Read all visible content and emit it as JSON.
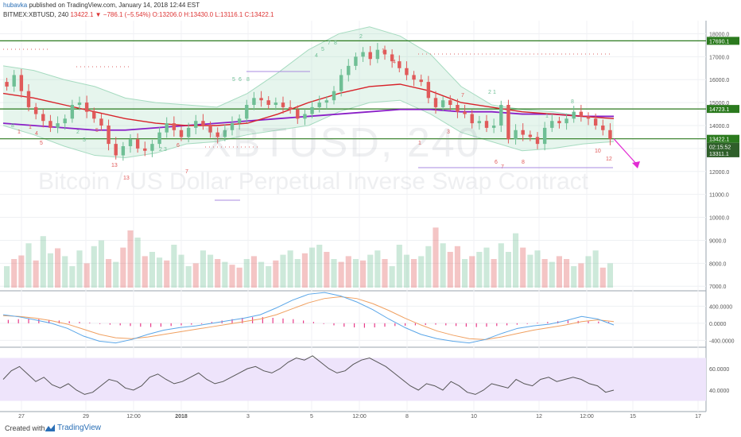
{
  "header": {
    "user": "hubavka",
    "published": "published on TradingView.com, January 14, 2018 12:44 EST",
    "symbol": "BITMEX:XBTUSD, 240",
    "change": "13422.1 ▼ −786.1 (−5.54%)",
    "ohlc": "O:13206.0 H:13430.0 L:13116.1 C:13422.1"
  },
  "watermark": {
    "symbol": "XBTUSD, 240",
    "description": "Bitcoin / US Dollar Perpetual Inverse Swap Contract"
  },
  "footer": {
    "created": "Created with",
    "brand": "TradingView"
  },
  "colors": {
    "up": "#6fbf95",
    "down": "#e05a5a",
    "ema": "#d8222a",
    "ma": "#8a1fc7",
    "band": "#a6dbc0",
    "level": "#2b7a1e",
    "rsi_band": "#eee4fb",
    "arrow": "#e22bd3",
    "macd": "#5aa6e8",
    "signal": "#f0a060"
  },
  "chart_data": [
    {
      "type": "candlestick",
      "title": "BITMEX:XBTUSD, 240",
      "y_ticks": [
        7000,
        8000,
        9000,
        10000,
        11000,
        12000,
        13000,
        14000,
        15000,
        16000,
        17000,
        18000
      ],
      "y_tick_labels": [
        "7000.0",
        "8000.0",
        "9000.0",
        "10000.0",
        "11000.0",
        "12000.0",
        "13000.0",
        "14000.0",
        "15000.0",
        "16000.0",
        "17000.0",
        "18000.0"
      ],
      "ylim": [
        6800,
        18500
      ],
      "x_tick_labels": [
        "27",
        "29",
        "12:00",
        "2018",
        "3",
        "5",
        "12:00",
        "8",
        "10",
        "12",
        "12:00",
        "15",
        "17"
      ],
      "horizontal_levels": [
        17690.1,
        14723.1,
        13422.1
      ],
      "price_labels": [
        "17690.1",
        "14723.1",
        "13422.1",
        "02:15:52",
        "13311.1"
      ],
      "close_path": [
        15700,
        16200,
        15500,
        14800,
        14500,
        14200,
        13900,
        14100,
        14300,
        14900,
        15000,
        14600,
        14300,
        14000,
        13200,
        12700,
        13100,
        13400,
        13000,
        12900,
        13200,
        13700,
        14100,
        13800,
        13500,
        13900,
        14200,
        14000,
        13700,
        13500,
        13800,
        14100,
        14300,
        14900,
        15200,
        15100,
        14900,
        15000,
        14800,
        14700,
        14300,
        14500,
        14800,
        15000,
        15100,
        15500,
        16200,
        16600,
        17000,
        17200,
        16900,
        17300,
        17100,
        16800,
        16500,
        16200,
        16000,
        15900,
        15200,
        14800,
        15100,
        14900,
        14600,
        14500,
        14100,
        14200,
        13900,
        14000,
        14900,
        13400,
        13800,
        13600,
        13500,
        13200,
        13900,
        14200,
        14100,
        14300,
        14600,
        14400,
        14300,
        14000,
        13800,
        13422.1
      ],
      "bollinger": {
        "upper": [
          16600,
          16400,
          16000,
          15700,
          15200,
          15000,
          14900,
          14800,
          15400,
          16300,
          17300,
          18000,
          18300,
          17900,
          17100,
          15700,
          14900,
          14700,
          14600,
          14400,
          14400
        ],
        "lower": [
          14000,
          13600,
          13100,
          12700,
          12600,
          12800,
          13200,
          13300,
          13600,
          13800,
          14000,
          14600,
          15000,
          15100,
          14500,
          13700,
          13300,
          12900,
          13000,
          13200,
          13300
        ]
      },
      "ema": [
        15400,
        15200,
        14900,
        14600,
        14300,
        14100,
        14000,
        14000,
        14100,
        14500,
        15000,
        15400,
        15700,
        15800,
        15500,
        15000,
        14800,
        14600,
        14500,
        14400,
        14300
      ],
      "ma": [
        14100,
        14000,
        13900,
        13800,
        13800,
        13900,
        14000,
        14100,
        14200,
        14300,
        14400,
        14500,
        14600,
        14700,
        14700,
        14600,
        14600,
        14500,
        14500,
        14400,
        14400
      ]
    },
    {
      "type": "bar",
      "title": "Volume",
      "values": [
        30,
        40,
        45,
        62,
        38,
        72,
        48,
        55,
        44,
        30,
        52,
        34,
        58,
        66,
        40,
        36,
        56,
        80,
        70,
        44,
        50,
        42,
        38,
        60,
        46,
        30,
        34,
        52,
        46,
        40,
        36,
        32,
        28,
        40,
        44,
        36,
        30,
        38,
        46,
        52,
        40,
        48,
        56,
        60,
        50,
        40,
        36,
        44,
        40,
        38,
        46,
        52,
        40,
        30,
        60,
        46,
        40,
        44,
        58,
        84,
        62,
        50,
        58,
        40,
        44,
        50,
        56,
        40,
        62,
        50,
        76,
        56,
        46,
        52,
        40,
        36,
        44,
        40,
        30,
        34,
        44,
        52,
        28,
        34
      ],
      "ylim": [
        0,
        100
      ]
    },
    {
      "type": "line",
      "title": "MACD",
      "y_tick_labels": [
        "400.0000",
        "0.0000",
        "-400.0000"
      ],
      "y_ticks": [
        400,
        0,
        -400
      ],
      "ylim": [
        -560,
        760
      ],
      "macd": [
        200,
        150,
        80,
        0,
        -120,
        -300,
        -420,
        -460,
        -380,
        -260,
        -160,
        -100,
        -60,
        0,
        60,
        120,
        200,
        360,
        540,
        680,
        720,
        640,
        500,
        320,
        100,
        -100,
        -260,
        -360,
        -420,
        -460,
        -380,
        -240,
        -120,
        -60,
        -20,
        60,
        160,
        100,
        -40
      ],
      "signal": [
        180,
        160,
        120,
        60,
        -20,
        -140,
        -260,
        -340,
        -360,
        -320,
        -260,
        -200,
        -140,
        -80,
        -20,
        40,
        100,
        200,
        340,
        480,
        580,
        620,
        580,
        460,
        300,
        120,
        -40,
        -180,
        -280,
        -360,
        -380,
        -320,
        -240,
        -160,
        -100,
        -40,
        40,
        80,
        40
      ],
      "histogram": [
        50,
        60,
        65,
        60,
        50,
        40,
        30,
        20,
        10,
        -10,
        -20,
        -30,
        -40,
        -50,
        -55,
        -50,
        -40,
        -30,
        -20,
        -10,
        20,
        40,
        60,
        80,
        90,
        90,
        80,
        70,
        60,
        40,
        20,
        -10,
        -30,
        -50,
        -60,
        -65,
        -60,
        -50,
        -40,
        -35,
        -30,
        -25,
        -20,
        -30,
        -40,
        -50,
        -55,
        -50,
        -40,
        -30,
        -20,
        -10,
        10,
        20,
        30,
        40,
        35,
        30,
        25,
        20
      ]
    },
    {
      "type": "line",
      "title": "RSI",
      "y_tick_labels": [
        "60.0000",
        "40.0000"
      ],
      "y_ticks": [
        60,
        40
      ],
      "ylim": [
        20,
        80
      ],
      "band": [
        30,
        70
      ],
      "values": [
        50,
        58,
        62,
        55,
        48,
        52,
        45,
        42,
        46,
        40,
        36,
        38,
        44,
        50,
        48,
        42,
        40,
        44,
        52,
        55,
        50,
        46,
        48,
        52,
        56,
        50,
        46,
        48,
        52,
        56,
        60,
        62,
        58,
        56,
        60,
        66,
        70,
        68,
        72,
        66,
        60,
        56,
        58,
        64,
        68,
        70,
        66,
        62,
        56,
        50,
        44,
        40,
        46,
        44,
        40,
        48,
        44,
        38,
        36,
        40,
        46,
        44,
        42,
        50,
        46,
        44,
        50,
        52,
        48,
        50,
        52,
        50,
        46,
        44,
        38,
        40
      ]
    }
  ]
}
